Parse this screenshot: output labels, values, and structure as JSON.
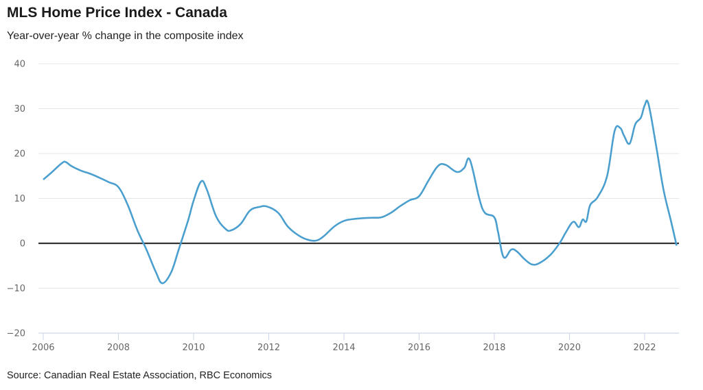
{
  "header": {
    "title": "MLS Home Price Index - Canada",
    "subtitle": "Year-over-year % change in the composite index"
  },
  "footer": {
    "source": "Source: Canadian Real Estate Association, RBC Economics"
  },
  "colors": {
    "line": "#4a9fcf",
    "zero_line": "#333333",
    "grid": "#e6e6e6",
    "x_axis": "#ccd6eb"
  },
  "chart_data": {
    "type": "line",
    "title": "MLS Home Price Index - Canada",
    "subtitle": "Year-over-year % change in the composite index",
    "xlabel": "",
    "ylabel": "",
    "xlim": [
      2005.95,
      2022.95
    ],
    "ylim": [
      -20,
      40
    ],
    "grid": true,
    "legend": "none",
    "x_ticks": [
      2006,
      2008,
      2010,
      2012,
      2014,
      2016,
      2018,
      2020,
      2022
    ],
    "x_tick_labels": [
      "2006",
      "2008",
      "2010",
      "2012",
      "2014",
      "2016",
      "2018",
      "2020",
      "2022"
    ],
    "y_ticks": [
      -20,
      -10,
      0,
      10,
      20,
      30,
      40
    ],
    "y_tick_labels": [
      "−20",
      "−10",
      "0",
      "10",
      "20",
      "30",
      "40"
    ],
    "series": [
      {
        "name": "MLS HPI composite y/y % change",
        "x": [
          2006.0,
          2006.25,
          2006.5,
          2006.6,
          2006.75,
          2007.0,
          2007.25,
          2007.5,
          2007.75,
          2008.0,
          2008.25,
          2008.5,
          2008.75,
          2009.0,
          2009.17,
          2009.4,
          2009.6,
          2009.85,
          2010.0,
          2010.2,
          2010.35,
          2010.6,
          2010.85,
          2011.0,
          2011.25,
          2011.5,
          2011.75,
          2011.95,
          2012.25,
          2012.5,
          2012.75,
          2013.0,
          2013.25,
          2013.45,
          2013.75,
          2014.0,
          2014.25,
          2014.5,
          2014.75,
          2015.0,
          2015.25,
          2015.5,
          2015.75,
          2016.0,
          2016.25,
          2016.5,
          2016.7,
          2017.0,
          2017.2,
          2017.35,
          2017.6,
          2017.75,
          2018.0,
          2018.1,
          2018.25,
          2018.45,
          2018.6,
          2018.8,
          2019.0,
          2019.2,
          2019.5,
          2019.75,
          2019.9,
          2020.1,
          2020.25,
          2020.35,
          2020.45,
          2020.55,
          2020.75,
          2021.0,
          2021.2,
          2021.35,
          2021.45,
          2021.6,
          2021.75,
          2021.9,
          2022.0,
          2022.1,
          2022.3,
          2022.5,
          2022.7,
          2022.85
        ],
        "y": [
          14.2,
          16.0,
          17.9,
          18.1,
          17.2,
          16.2,
          15.5,
          14.6,
          13.6,
          12.5,
          8.5,
          3.0,
          -1.5,
          -6.5,
          -8.9,
          -6.5,
          -1.5,
          5.0,
          9.5,
          13.8,
          12.0,
          6.0,
          3.2,
          2.9,
          4.3,
          7.3,
          8.1,
          8.2,
          6.8,
          3.8,
          2.0,
          0.9,
          0.6,
          1.5,
          3.8,
          5.0,
          5.4,
          5.6,
          5.7,
          5.8,
          6.8,
          8.3,
          9.6,
          10.5,
          14.0,
          17.2,
          17.5,
          15.9,
          16.8,
          18.6,
          10.0,
          6.8,
          5.8,
          2.5,
          -3.1,
          -1.4,
          -1.8,
          -3.5,
          -4.7,
          -4.4,
          -2.5,
          0.2,
          2.4,
          4.8,
          3.6,
          5.3,
          4.9,
          8.5,
          10.3,
          15.0,
          25.0,
          25.7,
          24.0,
          22.2,
          26.5,
          28.0,
          30.7,
          31.1,
          22.0,
          12.0,
          5.0,
          -0.5
        ]
      }
    ]
  }
}
